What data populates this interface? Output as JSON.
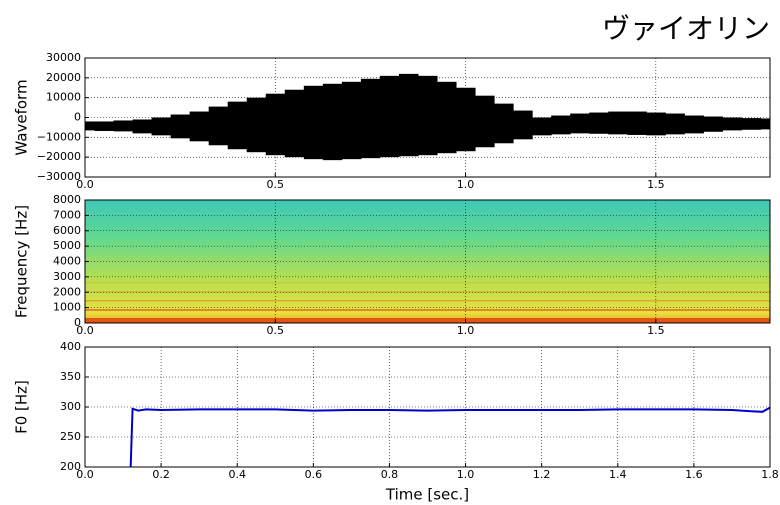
{
  "title": "ヴァイオリン",
  "chart_data": [
    {
      "type": "waveform",
      "ylabel": "Waveform",
      "x": [
        0,
        0.05,
        0.1,
        0.15,
        0.2,
        0.25,
        0.3,
        0.35,
        0.4,
        0.45,
        0.5,
        0.55,
        0.6,
        0.65,
        0.7,
        0.75,
        0.8,
        0.85,
        0.9,
        0.95,
        1.0,
        1.05,
        1.1,
        1.15,
        1.2,
        1.25,
        1.3,
        1.35,
        1.4,
        1.45,
        1.5,
        1.55,
        1.6,
        1.65,
        1.7,
        1.75,
        1.8
      ],
      "series": [
        {
          "color": "#000000",
          "values": [
            -2000,
            -2000,
            -1500,
            -1000,
            0,
            1500,
            3000,
            5500,
            8000,
            10000,
            12000,
            14000,
            16000,
            17000,
            18000,
            19500,
            21000,
            22000,
            21000,
            18000,
            15000,
            11000,
            7000,
            3500,
            0,
            1000,
            2000,
            2500,
            3000,
            3000,
            2500,
            2000,
            1000,
            500,
            0,
            -300,
            -500
          ]
        },
        {
          "color": "#000000",
          "values": [
            -6500,
            -6800,
            -7000,
            -8000,
            -9000,
            -10500,
            -12000,
            -14000,
            -16000,
            -17500,
            -19000,
            -20000,
            -21000,
            -21500,
            -21000,
            -20500,
            -20000,
            -19500,
            -19000,
            -18000,
            -17000,
            -15000,
            -13000,
            -11000,
            -9000,
            -8500,
            -8000,
            -8200,
            -8500,
            -8800,
            -9000,
            -8500,
            -8000,
            -7200,
            -6500,
            -6200,
            -6000
          ]
        }
      ],
      "xlim": [
        0,
        1.8
      ],
      "ylim": [
        -30000,
        30000
      ],
      "xticks": [
        {
          "value": 0,
          "label": "0.0"
        },
        0.5,
        {
          "value": 1,
          "label": "1.0"
        },
        1.5
      ],
      "yticks": [
        {
          "value": -30000,
          "label": "−30000"
        },
        {
          "value": -20000,
          "label": "−20000"
        },
        {
          "value": -10000,
          "label": "−10000"
        },
        0,
        10000,
        20000,
        30000
      ],
      "grid": true
    },
    {
      "type": "spectrogram",
      "ylabel": "Frequency [Hz]",
      "xlim": [
        0,
        1.8
      ],
      "ylim": [
        0,
        8000
      ],
      "xticks": [
        {
          "value": 0,
          "label": "0.0"
        },
        0.5,
        {
          "value": 1,
          "label": "1.0"
        },
        1.5
      ],
      "yticks": [
        0,
        1000,
        2000,
        3000,
        4000,
        5000,
        6000,
        7000,
        8000
      ],
      "grid": true
    },
    {
      "type": "line",
      "xlabel": "Time [sec.]",
      "ylabel": "F0 [Hz]",
      "x": [
        0.12,
        0.125,
        0.14,
        0.16,
        0.2,
        0.3,
        0.4,
        0.5,
        0.6,
        0.7,
        0.8,
        0.9,
        1.0,
        1.1,
        1.2,
        1.3,
        1.4,
        1.5,
        1.6,
        1.7,
        1.75,
        1.78,
        1.8
      ],
      "series": [
        {
          "color": "#0000cc",
          "values": [
            200,
            297,
            294,
            296,
            295,
            296,
            296,
            296,
            294,
            295,
            295,
            294,
            295,
            295,
            295,
            295,
            296,
            296,
            296,
            295,
            293,
            292,
            299
          ]
        }
      ],
      "xlim": [
        0,
        1.8
      ],
      "ylim": [
        200,
        400
      ],
      "xticks": [
        {
          "value": 0,
          "label": "0.0"
        },
        0.2,
        0.4,
        0.6,
        0.8,
        {
          "value": 1,
          "label": "1.0"
        },
        1.2,
        1.4,
        1.6,
        1.8
      ],
      "yticks": [
        200,
        250,
        300,
        350,
        400
      ],
      "grid": true
    }
  ]
}
